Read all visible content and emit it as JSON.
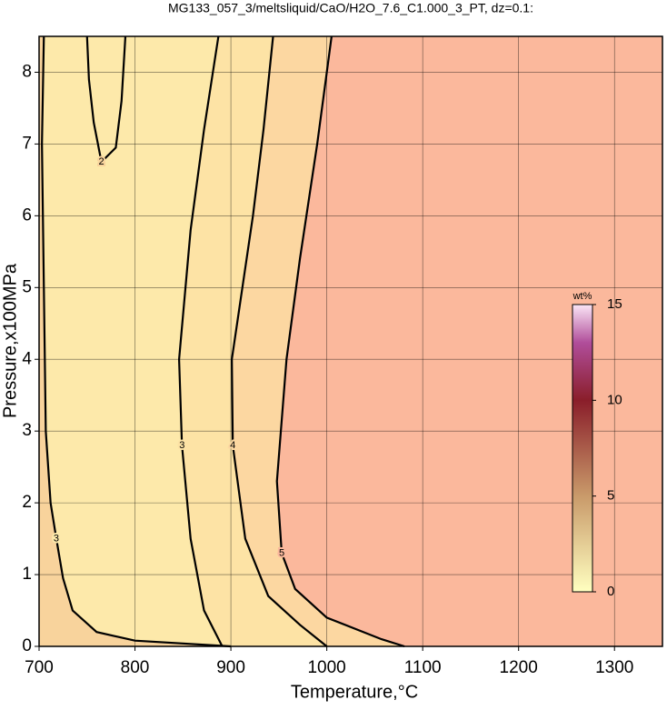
{
  "chart_data": {
    "type": "contour",
    "title": "MG133_057_3/meltsliquid/CaO/H2O_7.6_C1.000_3_PT, dz=0.1:",
    "xlabel": "Temperature,°C",
    "ylabel": "Pressure,x100MPa",
    "xlim": [
      700,
      1350
    ],
    "ylim": [
      0,
      8.5
    ],
    "xticks": [
      700,
      800,
      900,
      1000,
      1100,
      1200,
      1300
    ],
    "yticks": [
      0,
      1,
      2,
      3,
      4,
      5,
      6,
      7,
      8
    ],
    "grid": true,
    "background": "#f8d39c",
    "contours": [
      {
        "level": 3,
        "fill": "#fde9aa",
        "x": [
          705,
          703,
          705,
          707,
          712,
          718,
          725,
          735,
          760,
          800,
          900
        ],
        "y": [
          8.5,
          7,
          5,
          3,
          2,
          1.5,
          0.95,
          0.5,
          0.2,
          0.08,
          0
        ]
      },
      {
        "level": 2,
        "x": [
          750,
          752,
          757,
          765,
          780,
          786,
          790
        ],
        "y": [
          8.5,
          7.9,
          7.3,
          6.75,
          6.95,
          7.6,
          8.5
        ]
      },
      {
        "level": 3,
        "fill": "#fde3a5",
        "x": [
          887,
          872,
          858,
          846,
          849,
          858,
          872,
          891
        ],
        "y": [
          8.5,
          7.2,
          5.8,
          4,
          2.8,
          1.5,
          0.5,
          0
        ]
      },
      {
        "level": 4,
        "fill": "#fcd7a1",
        "x": [
          944,
          934,
          923,
          901,
          902,
          915,
          939,
          972,
          1000
        ],
        "y": [
          8.5,
          7.2,
          6,
          4,
          2.8,
          1.5,
          0.7,
          0.3,
          0
        ]
      },
      {
        "level": 5,
        "fill": "#fbb89c",
        "x": [
          1005,
          990,
          972,
          958,
          948,
          953,
          967,
          1000,
          1057,
          1081
        ],
        "y": [
          8.5,
          7,
          5.4,
          4,
          2.3,
          1.3,
          0.8,
          0.4,
          0.1,
          0
        ]
      }
    ],
    "colorbar": {
      "label": "wt%",
      "lim": [
        0,
        15
      ],
      "ticks": [
        0,
        5,
        10,
        15
      ],
      "stops": [
        {
          "value": 0,
          "color": "#ffffc0"
        },
        {
          "value": 5,
          "color": "#c99a6a"
        },
        {
          "value": 10,
          "color": "#8a1e2a"
        },
        {
          "value": 13,
          "color": "#b04d9a"
        },
        {
          "value": 15,
          "color": "#fbe6f6"
        }
      ]
    }
  }
}
